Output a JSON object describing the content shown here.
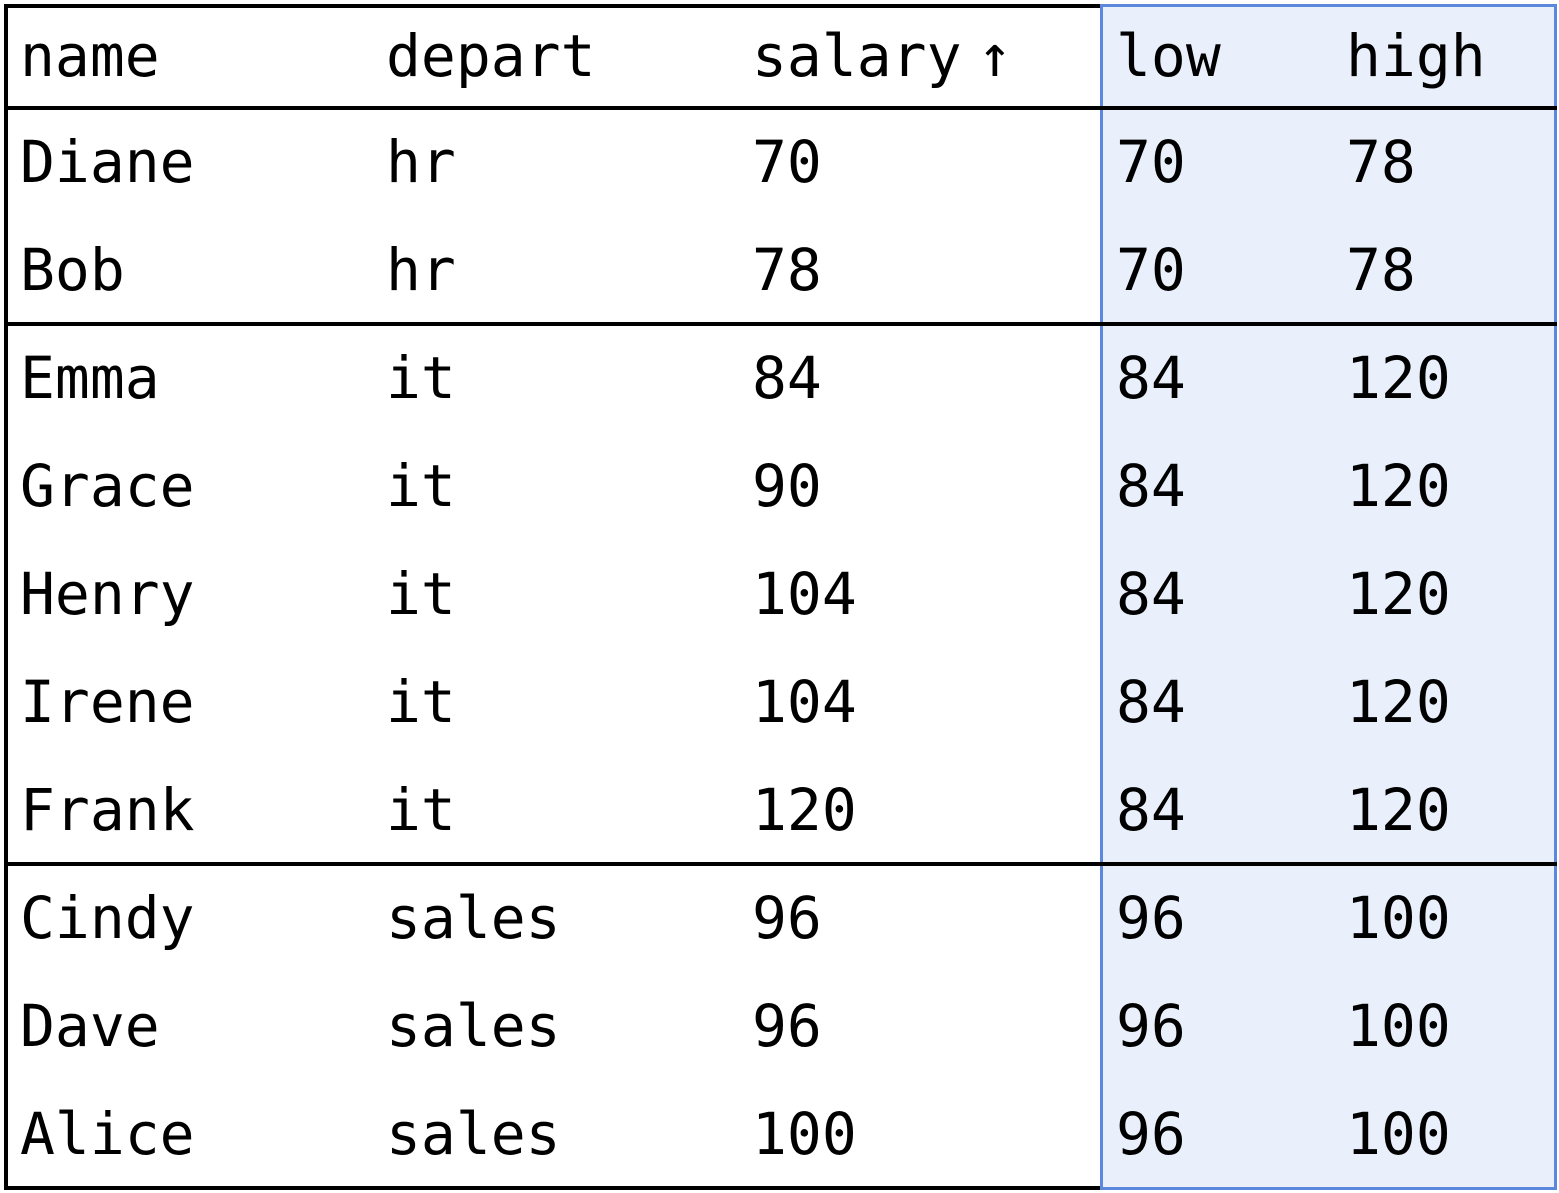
{
  "table": {
    "columns": [
      "name",
      "depart",
      "salary",
      "low",
      "high"
    ],
    "sort_indicator": "↑",
    "highlighted_columns": [
      "low",
      "high"
    ],
    "groups": [
      {
        "rows": [
          [
            "Diane",
            "hr",
            "70",
            "70",
            "78"
          ],
          [
            "Bob",
            "hr",
            "78",
            "70",
            "78"
          ]
        ]
      },
      {
        "rows": [
          [
            "Emma",
            "it",
            "84",
            "84",
            "120"
          ],
          [
            "Grace",
            "it",
            "90",
            "84",
            "120"
          ],
          [
            "Henry",
            "it",
            "104",
            "84",
            "120"
          ],
          [
            "Irene",
            "it",
            "104",
            "84",
            "120"
          ],
          [
            "Frank",
            "it",
            "120",
            "84",
            "120"
          ]
        ]
      },
      {
        "rows": [
          [
            "Cindy",
            "sales",
            "96",
            "96",
            "100"
          ],
          [
            "Dave",
            "sales",
            "96",
            "96",
            "100"
          ],
          [
            "Alice",
            "sales",
            "100",
            "96",
            "100"
          ]
        ]
      }
    ]
  },
  "colors": {
    "highlight_fill": "#e9f0fb",
    "highlight_border": "#5b87dc",
    "rule": "#000000"
  }
}
